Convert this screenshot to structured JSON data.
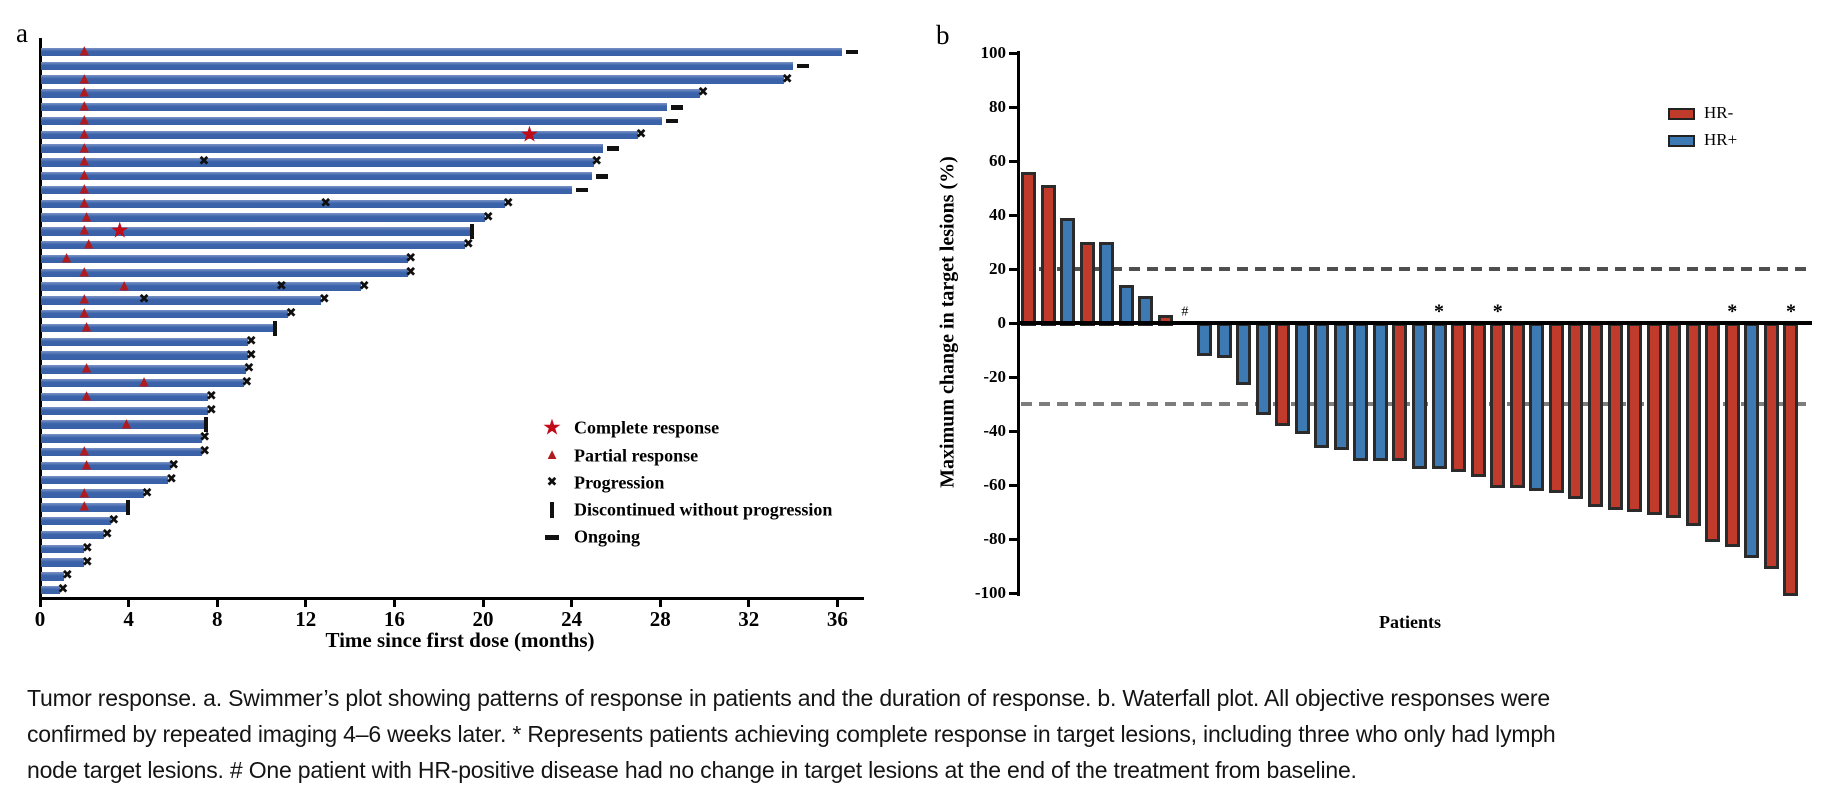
{
  "caption": {
    "lines": [
      "Tumor response. a. Swimmer’s plot showing patterns of response in patients and the duration of response. b. Waterfall plot. All objective responses were",
      "confirmed by repeated imaging 4–6 weeks later. * Represents patients achieving complete response in target lesions, including three who only had lymph",
      "node target lesions. # One patient with HR-positive disease had no change in target lesions at the end of the treatment from baseline."
    ]
  },
  "colors": {
    "swimmer_bar": "#3b63aa",
    "triangle_red": "#b01b20",
    "star_red": "#c00b19",
    "x_marker": "#0f0f0f",
    "black_marker": "#111111",
    "hr_neg": "#c13b2c",
    "hr_pos": "#3d7ab3",
    "bar_border": "#2b2b2b",
    "dash_upper": "#4f4f4f",
    "dash_lower": "#7d7d7d"
  },
  "chart_data": [
    {
      "type": "swimmer",
      "panel_label": "a",
      "xlabel": "Time since first dose (months)",
      "xticks": [
        0,
        4,
        8,
        12,
        16,
        20,
        24,
        28,
        32,
        36
      ],
      "xlim": [
        0,
        37.3
      ],
      "legend": [
        {
          "icon": "star",
          "label": "Complete response"
        },
        {
          "icon": "triangle",
          "label": "Partial response"
        },
        {
          "icon": "x",
          "label": "Progression"
        },
        {
          "icon": "discontinued",
          "label": "Discontinued without progression"
        },
        {
          "icon": "ongoing",
          "label": "Ongoing"
        }
      ],
      "marker_meanings": {
        "t": "partial response (months)",
        "s": "complete response (months)",
        "x": "progression events (months)",
        "end": "bar end status: dash=ongoing, x=progression, disc=discontinued without progression"
      },
      "patients": [
        {
          "len": 36.2,
          "t": 2.0,
          "s": null,
          "x": [],
          "end": "dash"
        },
        {
          "len": 34.0,
          "t": null,
          "s": null,
          "x": [],
          "end": "dash"
        },
        {
          "len": 33.6,
          "t": 2.0,
          "s": null,
          "x": [],
          "end": "x"
        },
        {
          "len": 29.8,
          "t": 2.0,
          "s": null,
          "x": [],
          "end": "x"
        },
        {
          "len": 28.3,
          "t": 2.0,
          "s": null,
          "x": [],
          "end": "dash"
        },
        {
          "len": 28.1,
          "t": 2.0,
          "s": null,
          "x": [],
          "end": "dash"
        },
        {
          "len": 27.0,
          "t": 2.0,
          "s": 22.1,
          "x": [],
          "end": "x"
        },
        {
          "len": 25.4,
          "t": 2.0,
          "s": null,
          "x": [],
          "end": "dash"
        },
        {
          "len": 25.0,
          "t": 2.0,
          "s": null,
          "x": [
            7.4
          ],
          "end": "x"
        },
        {
          "len": 24.9,
          "t": 2.0,
          "s": null,
          "x": [],
          "end": "dash"
        },
        {
          "len": 24.0,
          "t": 2.0,
          "s": null,
          "x": [],
          "end": "dash"
        },
        {
          "len": 21.0,
          "t": 2.0,
          "s": null,
          "x": [
            12.9
          ],
          "end": "x"
        },
        {
          "len": 20.1,
          "t": 2.1,
          "s": null,
          "x": [],
          "end": "x"
        },
        {
          "len": 19.4,
          "t": 2.0,
          "s": 3.6,
          "x": [],
          "end": "disc"
        },
        {
          "len": 19.2,
          "t": 2.2,
          "s": null,
          "x": [],
          "end": "x"
        },
        {
          "len": 16.6,
          "t": 1.2,
          "s": null,
          "x": [],
          "end": "x"
        },
        {
          "len": 16.6,
          "t": 2.0,
          "s": null,
          "x": [],
          "end": "x"
        },
        {
          "len": 14.5,
          "t": 3.8,
          "s": null,
          "x": [
            10.9
          ],
          "end": "x"
        },
        {
          "len": 12.7,
          "t": 2.0,
          "s": null,
          "x": [
            4.7
          ],
          "end": "x"
        },
        {
          "len": 11.2,
          "t": 2.0,
          "s": null,
          "x": [],
          "end": "x"
        },
        {
          "len": 10.5,
          "t": 2.1,
          "s": null,
          "x": [],
          "end": "disc"
        },
        {
          "len": 9.4,
          "t": null,
          "s": null,
          "x": [],
          "end": "x"
        },
        {
          "len": 9.4,
          "t": null,
          "s": null,
          "x": [],
          "end": "x"
        },
        {
          "len": 9.3,
          "t": 2.1,
          "s": null,
          "x": [],
          "end": "x"
        },
        {
          "len": 9.2,
          "t": 4.7,
          "s": null,
          "x": [],
          "end": "x"
        },
        {
          "len": 7.6,
          "t": 2.1,
          "s": null,
          "x": [],
          "end": "x"
        },
        {
          "len": 7.6,
          "t": null,
          "s": null,
          "x": [],
          "end": "x"
        },
        {
          "len": 7.4,
          "t": 3.9,
          "s": null,
          "x": [],
          "end": "disc"
        },
        {
          "len": 7.3,
          "t": null,
          "s": null,
          "x": [],
          "end": "x"
        },
        {
          "len": 7.3,
          "t": 2.0,
          "s": null,
          "x": [],
          "end": "x"
        },
        {
          "len": 5.9,
          "t": 2.1,
          "s": null,
          "x": [],
          "end": "x"
        },
        {
          "len": 5.8,
          "t": null,
          "s": null,
          "x": [],
          "end": "x"
        },
        {
          "len": 4.7,
          "t": 2.0,
          "s": null,
          "x": [],
          "end": "x"
        },
        {
          "len": 3.9,
          "t": 2.0,
          "s": null,
          "x": [],
          "end": "disc"
        },
        {
          "len": 3.2,
          "t": null,
          "s": null,
          "x": [],
          "end": "x"
        },
        {
          "len": 2.9,
          "t": null,
          "s": null,
          "x": [],
          "end": "x"
        },
        {
          "len": 2.0,
          "t": null,
          "s": null,
          "x": [],
          "end": "x"
        },
        {
          "len": 2.0,
          "t": null,
          "s": null,
          "x": [],
          "end": "x"
        },
        {
          "len": 1.1,
          "t": null,
          "s": null,
          "x": [],
          "end": "x"
        },
        {
          "len": 0.9,
          "t": null,
          "s": null,
          "x": [],
          "end": "x"
        }
      ]
    },
    {
      "type": "waterfall",
      "panel_label": "b",
      "ylabel": "Maximum change in target lesions (%)",
      "xlabel": "Patients",
      "ylim": [
        -100,
        100
      ],
      "yticks": [
        100,
        80,
        60,
        40,
        20,
        0,
        -20,
        -40,
        -60,
        -80,
        -100
      ],
      "reference_lines": [
        20,
        -30
      ],
      "legend": [
        {
          "label": "HR-",
          "group": "HR-"
        },
        {
          "label": "HR+",
          "group": "HR+"
        }
      ],
      "bars": [
        {
          "v": 56,
          "g": "HR-"
        },
        {
          "v": 51,
          "g": "HR-"
        },
        {
          "v": 39,
          "g": "HR+"
        },
        {
          "v": 30,
          "g": "HR-"
        },
        {
          "v": 30,
          "g": "HR+"
        },
        {
          "v": 14,
          "g": "HR+"
        },
        {
          "v": 10,
          "g": "HR+"
        },
        {
          "v": 3,
          "g": "HR-"
        },
        {
          "v": 0,
          "g": "HR+",
          "mark": "#"
        },
        {
          "v": -11,
          "g": "HR+"
        },
        {
          "v": -12,
          "g": "HR+"
        },
        {
          "v": -22,
          "g": "HR+"
        },
        {
          "v": -33,
          "g": "HR+"
        },
        {
          "v": -37,
          "g": "HR-"
        },
        {
          "v": -40,
          "g": "HR+"
        },
        {
          "v": -45,
          "g": "HR+"
        },
        {
          "v": -46,
          "g": "HR+"
        },
        {
          "v": -50,
          "g": "HR+"
        },
        {
          "v": -50,
          "g": "HR+"
        },
        {
          "v": -50,
          "g": "HR-"
        },
        {
          "v": -53,
          "g": "HR+"
        },
        {
          "v": -53,
          "g": "HR+",
          "mark": "*"
        },
        {
          "v": -54,
          "g": "HR-"
        },
        {
          "v": -56,
          "g": "HR-"
        },
        {
          "v": -60,
          "g": "HR-",
          "mark": "*"
        },
        {
          "v": -60,
          "g": "HR-"
        },
        {
          "v": -61,
          "g": "HR+"
        },
        {
          "v": -62,
          "g": "HR-"
        },
        {
          "v": -64,
          "g": "HR-"
        },
        {
          "v": -67,
          "g": "HR-"
        },
        {
          "v": -68,
          "g": "HR-"
        },
        {
          "v": -69,
          "g": "HR-"
        },
        {
          "v": -70,
          "g": "HR-"
        },
        {
          "v": -71,
          "g": "HR-"
        },
        {
          "v": -74,
          "g": "HR-"
        },
        {
          "v": -80,
          "g": "HR-"
        },
        {
          "v": -82,
          "g": "HR-",
          "mark": "*"
        },
        {
          "v": -86,
          "g": "HR+"
        },
        {
          "v": -90,
          "g": "HR-"
        },
        {
          "v": -100,
          "g": "HR-",
          "mark": "*"
        }
      ]
    }
  ]
}
